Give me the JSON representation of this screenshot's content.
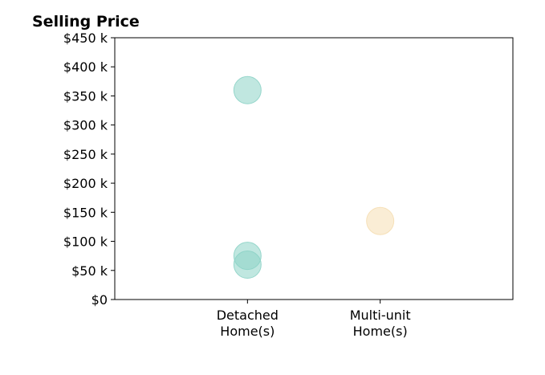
{
  "chart_data": {
    "type": "scatter",
    "title": "Selling Price",
    "xlabel": "",
    "ylabel": "",
    "categories": [
      "Detached\nHome(s)",
      "Multi-unit\nHome(s)"
    ],
    "yticks": [
      "$0",
      "$50 k",
      "$100 k",
      "$150 k",
      "$200 k",
      "$250 k",
      "$300 k",
      "$350 k",
      "$400 k",
      "$450 k"
    ],
    "ylim": [
      0,
      450000
    ],
    "xlim": [
      -1,
      2
    ],
    "grid": false,
    "points": [
      {
        "category": "Detached\nHome(s)",
        "value": 360000,
        "color": "#8dd3c7"
      },
      {
        "category": "Detached\nHome(s)",
        "value": 75000,
        "color": "#8dd3c7"
      },
      {
        "category": "Detached\nHome(s)",
        "value": 60000,
        "color": "#8dd3c7"
      },
      {
        "category": "Multi-unit\nHome(s)",
        "value": 135000,
        "color": "#f5deb3"
      }
    ]
  }
}
